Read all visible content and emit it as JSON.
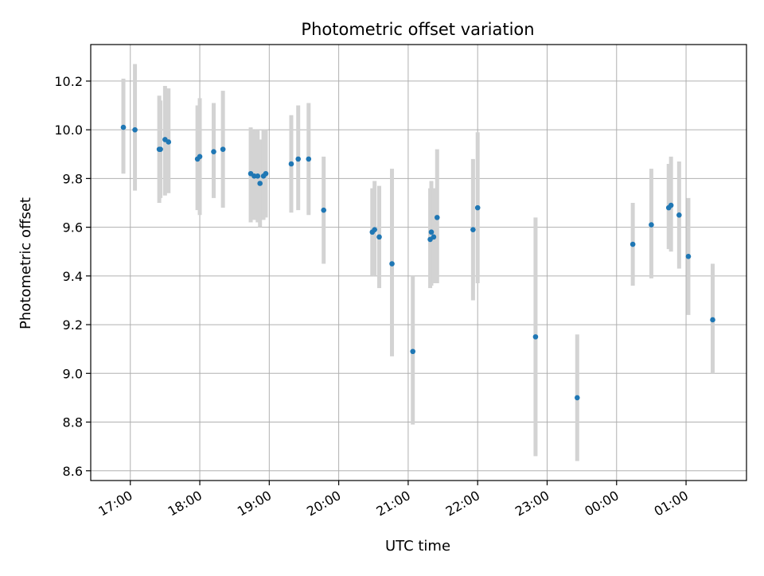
{
  "chart_data": {
    "type": "scatter",
    "title": "Photometric offset variation",
    "xlabel": "UTC time",
    "ylabel": "Photometric offset",
    "x_ticks": [
      "17:00",
      "18:00",
      "19:00",
      "20:00",
      "21:00",
      "22:00",
      "23:00",
      "00:00",
      "01:00"
    ],
    "y_ticks": [
      "8.6",
      "8.8",
      "9.0",
      "9.2",
      "9.4",
      "9.6",
      "9.8",
      "10.0",
      "10.2"
    ],
    "xlim_hours": [
      16.43,
      25.87
    ],
    "ylim": [
      8.56,
      10.35
    ],
    "grid": true,
    "marker_color": "#1f77b4",
    "errorbar_color": "#d3d3d3",
    "points": [
      {
        "t": "16:54",
        "y": 10.01,
        "lo": 9.82,
        "hi": 10.21
      },
      {
        "t": "17:04",
        "y": 10.0,
        "lo": 9.75,
        "hi": 10.27
      },
      {
        "t": "17:25",
        "y": 9.92,
        "lo": 9.7,
        "hi": 10.14
      },
      {
        "t": "17:26",
        "y": 9.92,
        "lo": 9.72,
        "hi": 10.12
      },
      {
        "t": "17:30",
        "y": 9.96,
        "lo": 9.73,
        "hi": 10.18
      },
      {
        "t": "17:33",
        "y": 9.95,
        "lo": 9.74,
        "hi": 10.17
      },
      {
        "t": "17:58",
        "y": 9.88,
        "lo": 9.67,
        "hi": 10.1
      },
      {
        "t": "18:00",
        "y": 9.89,
        "lo": 9.65,
        "hi": 10.13
      },
      {
        "t": "18:12",
        "y": 9.91,
        "lo": 9.72,
        "hi": 10.11
      },
      {
        "t": "18:20",
        "y": 9.92,
        "lo": 9.68,
        "hi": 10.16
      },
      {
        "t": "18:44",
        "y": 9.82,
        "lo": 9.62,
        "hi": 10.01
      },
      {
        "t": "18:47",
        "y": 9.81,
        "lo": 9.63,
        "hi": 10.0
      },
      {
        "t": "18:50",
        "y": 9.81,
        "lo": 9.62,
        "hi": 10.0
      },
      {
        "t": "18:52",
        "y": 9.78,
        "lo": 9.6,
        "hi": 9.96
      },
      {
        "t": "18:55",
        "y": 9.81,
        "lo": 9.63,
        "hi": 10.0
      },
      {
        "t": "18:57",
        "y": 9.82,
        "lo": 9.64,
        "hi": 10.0
      },
      {
        "t": "19:19",
        "y": 9.86,
        "lo": 9.66,
        "hi": 10.06
      },
      {
        "t": "19:25",
        "y": 9.88,
        "lo": 9.67,
        "hi": 10.1
      },
      {
        "t": "19:34",
        "y": 9.88,
        "lo": 9.65,
        "hi": 10.11
      },
      {
        "t": "19:47",
        "y": 9.67,
        "lo": 9.45,
        "hi": 9.89
      },
      {
        "t": "20:29",
        "y": 9.58,
        "lo": 9.4,
        "hi": 9.76
      },
      {
        "t": "20:31",
        "y": 9.59,
        "lo": 9.4,
        "hi": 9.79
      },
      {
        "t": "20:35",
        "y": 9.56,
        "lo": 9.35,
        "hi": 9.77
      },
      {
        "t": "20:46",
        "y": 9.45,
        "lo": 9.07,
        "hi": 9.84
      },
      {
        "t": "21:04",
        "y": 9.09,
        "lo": 8.79,
        "hi": 9.4
      },
      {
        "t": "21:19",
        "y": 9.55,
        "lo": 9.35,
        "hi": 9.76
      },
      {
        "t": "21:20",
        "y": 9.58,
        "lo": 9.36,
        "hi": 9.79
      },
      {
        "t": "21:22",
        "y": 9.56,
        "lo": 9.37,
        "hi": 9.76
      },
      {
        "t": "21:25",
        "y": 9.64,
        "lo": 9.37,
        "hi": 9.92
      },
      {
        "t": "21:56",
        "y": 9.59,
        "lo": 9.3,
        "hi": 9.88
      },
      {
        "t": "22:00",
        "y": 9.68,
        "lo": 9.37,
        "hi": 9.99
      },
      {
        "t": "22:50",
        "y": 9.15,
        "lo": 8.66,
        "hi": 9.64
      },
      {
        "t": "23:26",
        "y": 8.9,
        "lo": 8.64,
        "hi": 9.16
      },
      {
        "t": "00:14",
        "y": 9.53,
        "lo": 9.36,
        "hi": 9.7
      },
      {
        "t": "00:30",
        "y": 9.61,
        "lo": 9.39,
        "hi": 9.84
      },
      {
        "t": "00:45",
        "y": 9.68,
        "lo": 9.51,
        "hi": 9.86
      },
      {
        "t": "00:47",
        "y": 9.69,
        "lo": 9.5,
        "hi": 9.89
      },
      {
        "t": "00:54",
        "y": 9.65,
        "lo": 9.43,
        "hi": 9.87
      },
      {
        "t": "01:02",
        "y": 9.48,
        "lo": 9.24,
        "hi": 9.72
      },
      {
        "t": "01:23",
        "y": 9.22,
        "lo": 9.0,
        "hi": 9.45
      }
    ]
  }
}
